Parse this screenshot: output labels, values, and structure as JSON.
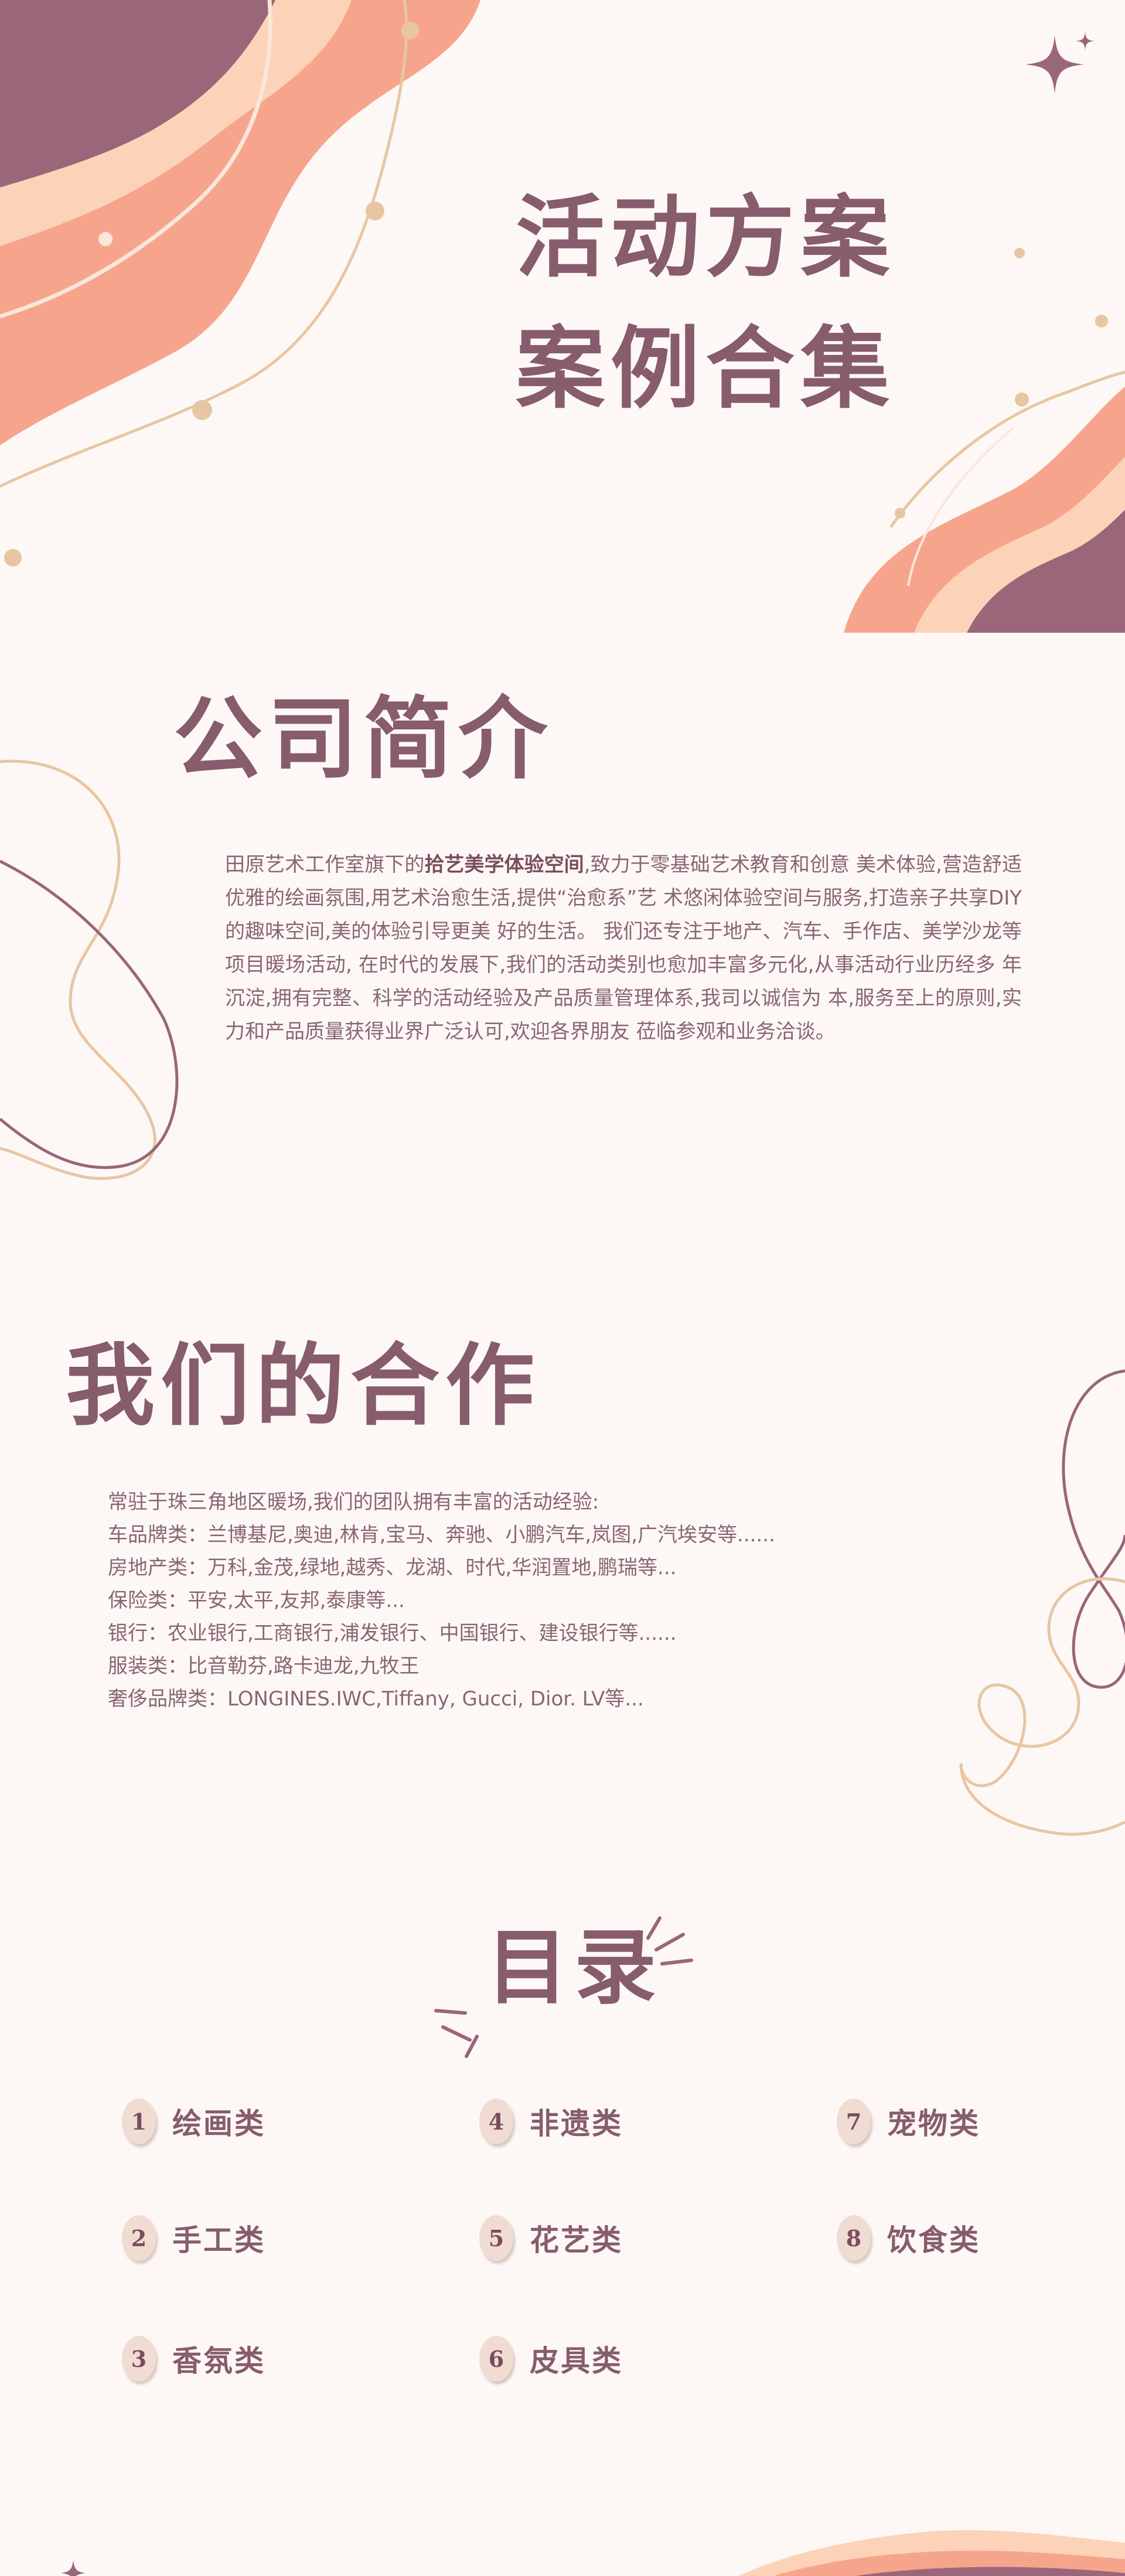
{
  "cover": {
    "title_line1": "活动方案",
    "title_line2": "案例合集"
  },
  "intro": {
    "heading": "公司简介",
    "text_before_bold": "田原艺术工作室旗下的",
    "text_bold": "拾艺美学体验空间",
    "text_after_bold": ",致力于零基础艺术教育和创意 美术体验,营造舒适优雅的绘画氛围,用艺术治愈生活,提供“治愈系”艺 术悠闲体验空间与服务,打造亲子共享DIY的趣味空间,美的体验引导更美 好的生活。 我们还专注于地产、汽车、手作店、美学沙龙等项目暖场活动, 在时代的发展下,我们的活动类别也愈加丰富多元化,从事活动行业历经多 年沉淀,拥有完整、科学的活动经验及产品质量管理体系,我司以诚信为 本,服务至上的原则,实力和产品质量获得业界广泛认可,欢迎各界朋友 莅临参观和业务洽谈。"
  },
  "cooperation": {
    "heading": "我们的合作",
    "lines": [
      "常驻于珠三角地区暖场,我们的团队拥有丰富的活动经验:",
      "车品牌类：兰博基尼,奥迪,林肯,宝马、奔驰、小鹏汽车,岚图,广汽埃安等......",
      "房地产类：万科,金茂,绿地,越秀、龙湖、时代,华润置地,鹏瑞等...",
      "保险类：平安,太平,友邦,泰康等...",
      "银行：农业银行,工商银行,浦发银行、中国银行、建设银行等......",
      "服装类：比音勒芬,路卡迪龙,九牧王",
      "奢侈品牌类：LONGINES.IWC,Tiffany, Gucci, Dior. LV等..."
    ]
  },
  "toc": {
    "heading": "目录",
    "items": [
      {
        "num": "1",
        "label": "绘画类"
      },
      {
        "num": "2",
        "label": "手工类"
      },
      {
        "num": "3",
        "label": "香氛类"
      },
      {
        "num": "4",
        "label": "非遗类"
      },
      {
        "num": "5",
        "label": "花艺类"
      },
      {
        "num": "6",
        "label": "皮具类"
      },
      {
        "num": "7",
        "label": "宠物类"
      },
      {
        "num": "8",
        "label": "饮食类"
      }
    ]
  },
  "colors": {
    "background": "#fdf8f5",
    "heading": "#875c6c",
    "body_text": "#8a6575",
    "salmon": "#f6a58c",
    "peach": "#fcd3b9",
    "mauve": "#9a6679",
    "line": "#e8c6a3"
  }
}
